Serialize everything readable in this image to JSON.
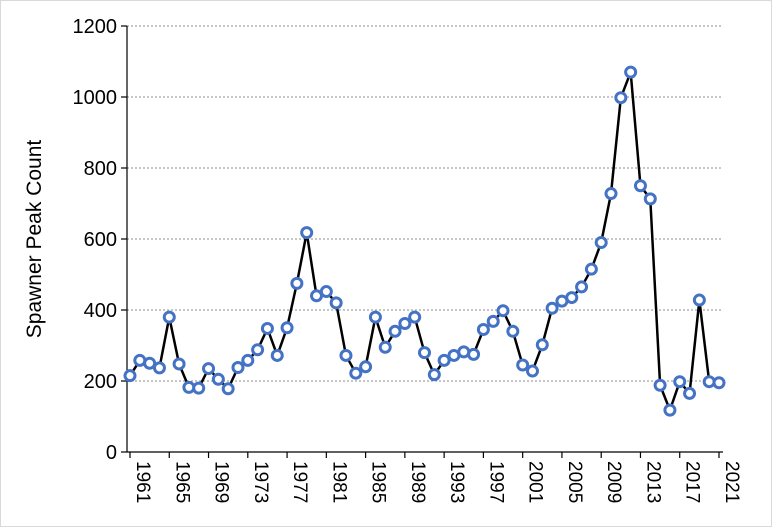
{
  "chart_data": {
    "type": "line",
    "title": "",
    "xlabel": "",
    "ylabel": "Spawner Peak Count",
    "ylim": [
      0,
      1200
    ],
    "y_ticks": [
      0,
      200,
      400,
      600,
      800,
      1000,
      1200
    ],
    "x_tick_labels": [
      "1961",
      "1965",
      "1969",
      "1973",
      "1977",
      "1981",
      "1985",
      "1989",
      "1993",
      "1997",
      "2001",
      "2005",
      "2009",
      "2013",
      "2017",
      "2021"
    ],
    "grid": "horizontal",
    "legend": "none",
    "line_color": "#000000",
    "marker_color": "#4472C4",
    "x": [
      1961,
      1962,
      1963,
      1964,
      1965,
      1966,
      1967,
      1968,
      1969,
      1970,
      1971,
      1972,
      1973,
      1974,
      1975,
      1976,
      1977,
      1978,
      1979,
      1980,
      1981,
      1982,
      1983,
      1984,
      1985,
      1986,
      1987,
      1988,
      1989,
      1990,
      1991,
      1992,
      1993,
      1994,
      1995,
      1996,
      1997,
      1998,
      1999,
      2000,
      2001,
      2002,
      2003,
      2004,
      2005,
      2006,
      2007,
      2008,
      2009,
      2010,
      2011,
      2012,
      2013,
      2014,
      2015,
      2016,
      2017,
      2018,
      2019,
      2020,
      2021
    ],
    "series": [
      {
        "values": [
          215,
          258,
          250,
          237,
          380,
          248,
          182,
          180,
          235,
          205,
          178,
          238,
          258,
          288,
          348,
          272,
          350,
          475,
          618,
          440,
          452,
          420,
          272,
          222,
          240,
          380,
          295,
          340,
          362,
          380,
          280,
          218,
          258,
          272,
          282,
          275,
          345,
          368,
          398,
          340,
          245,
          228,
          302,
          405,
          425,
          435,
          465,
          515,
          590,
          728,
          998,
          1070,
          750,
          713,
          188,
          118,
          198,
          165,
          428,
          198,
          195
        ]
      }
    ]
  }
}
